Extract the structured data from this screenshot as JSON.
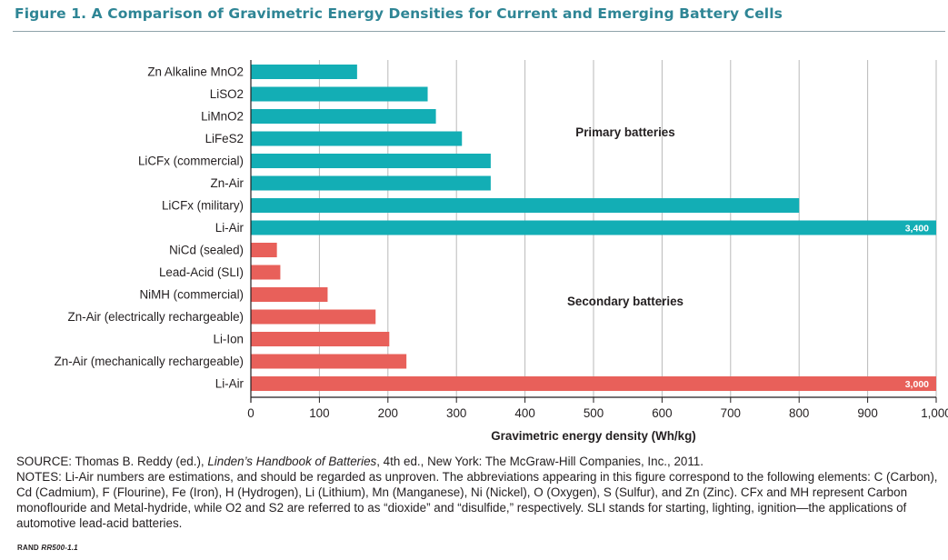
{
  "figure_title": "Figure 1. A Comparison of Gravimetric Energy Densities for Current and Emerging Battery Cells",
  "source": {
    "prefix": "SOURCE: Thomas B. Reddy (ed.), ",
    "book": "Linden’s Handbook of Batteries",
    "suffix": ", 4th ed., New York: The McGraw-Hill Companies, Inc., 2011."
  },
  "notes": "NOTES: Li-Air numbers are estimations, and should be regarded as unproven. The abbreviations appearing in this figure correspond to the following elements: C (Carbon), Cd (Cadmium), F (Flourine), Fe (Iron), H (Hydrogen), Li (Lithium), Mn (Manganese), Ni (Nickel), O (Oxygen), S (Sulfur), and Zn (Zinc). CFx and MH represent Carbon monoflouride and Metal-hydride, while O2 and S2 are referred to as “dioxide” and “disulfide,” respectively. SLI stands for starting, lighting, ignition—the applications of automotive lead-acid batteries.",
  "rand_id": {
    "prefix": "RAND ",
    "number": "RR500-1.1"
  },
  "colors": {
    "primary": "#13aeb5",
    "secondary": "#e8605a",
    "title": "#2e8595",
    "grid": "#b9b9b9"
  },
  "chart_data": {
    "type": "bar",
    "orientation": "horizontal",
    "xlabel": "Gravimetric energy density (Wh/kg)",
    "xlim": [
      0,
      1000
    ],
    "xticks": [
      0,
      100,
      200,
      300,
      400,
      500,
      600,
      700,
      800,
      900,
      1000
    ],
    "xtick_labels": [
      "0",
      "100",
      "200",
      "300",
      "400",
      "500",
      "600",
      "700",
      "800",
      "900",
      "1,000"
    ],
    "grid": "vertical",
    "series": [
      {
        "name": "Primary batteries",
        "color": "#13aeb5",
        "categories": [
          "Zn Alkaline MnO2",
          "LiSO2",
          "LiMnO2",
          "LiFeS2",
          "LiCFx (commercial)",
          "Zn-Air",
          "LiCFx (military)",
          "Li-Air"
        ],
        "values": [
          155,
          258,
          270,
          308,
          350,
          350,
          800,
          3400
        ],
        "data_labels": [
          "",
          "",
          "",
          "",
          "",
          "",
          "",
          "3,400"
        ]
      },
      {
        "name": "Secondary batteries",
        "color": "#e8605a",
        "categories": [
          "NiCd (sealed)",
          "Lead-Acid (SLI)",
          "NiMH (commercial)",
          "Zn-Air (electrically rechargeable)",
          "Li-Ion",
          "Zn-Air (mechanically rechargeable)",
          "Li-Air"
        ],
        "values": [
          38,
          43,
          112,
          182,
          202,
          227,
          3000
        ],
        "data_labels": [
          "",
          "",
          "",
          "",
          "",
          "",
          "3,000"
        ]
      }
    ]
  }
}
